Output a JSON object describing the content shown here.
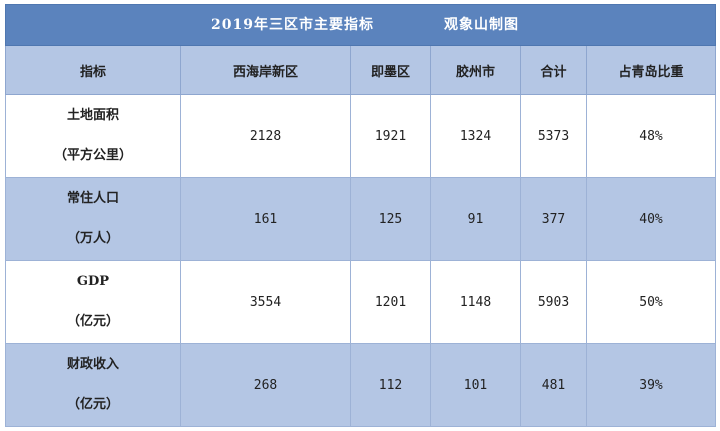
{
  "title": "2019年三区市主要指标",
  "credit": "观象山制图",
  "chart_data": {
    "type": "table",
    "columns": [
      "指标",
      "西海岸新区",
      "即墨区",
      "胶州市",
      "合计",
      "占青岛比重"
    ],
    "rows": [
      {
        "indicator": "土地面积",
        "unit": "（平方公里）",
        "values": [
          "2128",
          "1921",
          "1324",
          "5373",
          "48%"
        ]
      },
      {
        "indicator": "常住人口",
        "unit": "（万人）",
        "values": [
          "161",
          "125",
          "91",
          "377",
          "40%"
        ]
      },
      {
        "indicator": "GDP",
        "unit": "（亿元）",
        "values": [
          "3554",
          "1201",
          "1148",
          "5903",
          "50%"
        ]
      },
      {
        "indicator": "财政收入",
        "unit": "（亿元）",
        "values": [
          "268",
          "112",
          "101",
          "481",
          "39%"
        ]
      }
    ]
  },
  "colors": {
    "title_bg": "#5b83bd",
    "alt_row_bg": "#b4c6e4",
    "border": "#9db2d6"
  }
}
